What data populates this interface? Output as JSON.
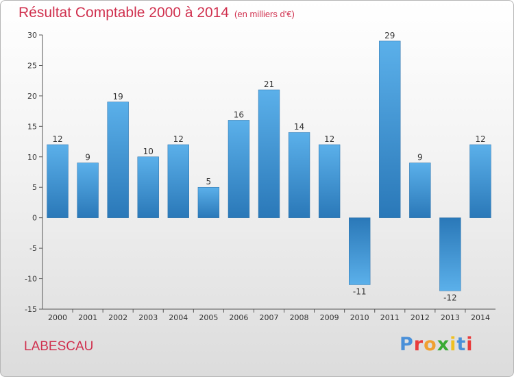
{
  "title": "Résultat Comptable 2000 à 2014",
  "unit": "(en milliers d'€)",
  "commune": "LABESCAU",
  "logo": {
    "text": "Proxiti",
    "colors": [
      "#4a90d9",
      "#e83b3b",
      "#f0a030",
      "#3aaa35",
      "#f0c020",
      "#4a90d9",
      "#e83b3b"
    ]
  },
  "colors": {
    "bar": "#3b94d9",
    "title": "#d0304e"
  },
  "chart_data": {
    "type": "bar",
    "title": "Résultat Comptable 2000 à 2014",
    "xlabel": "",
    "ylabel": "",
    "categories": [
      "2000",
      "2001",
      "2002",
      "2003",
      "2004",
      "2005",
      "2006",
      "2007",
      "2008",
      "2009",
      "2010",
      "2011",
      "2012",
      "2013",
      "2014"
    ],
    "values": [
      12,
      9,
      19,
      10,
      12,
      5,
      16,
      21,
      14,
      12,
      -11,
      29,
      9,
      -12,
      12
    ],
    "value_labels": [
      "12",
      "9",
      "19",
      "10",
      "12",
      "5",
      "16",
      "21",
      "14",
      "12",
      "-11",
      "29",
      "9",
      "-12",
      "12"
    ],
    "ylim": [
      -15,
      30
    ],
    "yticks": [
      30,
      25,
      20,
      15,
      10,
      5,
      0,
      -5,
      -10,
      -15
    ],
    "ytick_labels": [
      "30",
      "25",
      "20",
      "15",
      "10",
      "5",
      "0",
      "-5",
      "-10",
      "-15"
    ],
    "grid": false,
    "legend": "none"
  }
}
